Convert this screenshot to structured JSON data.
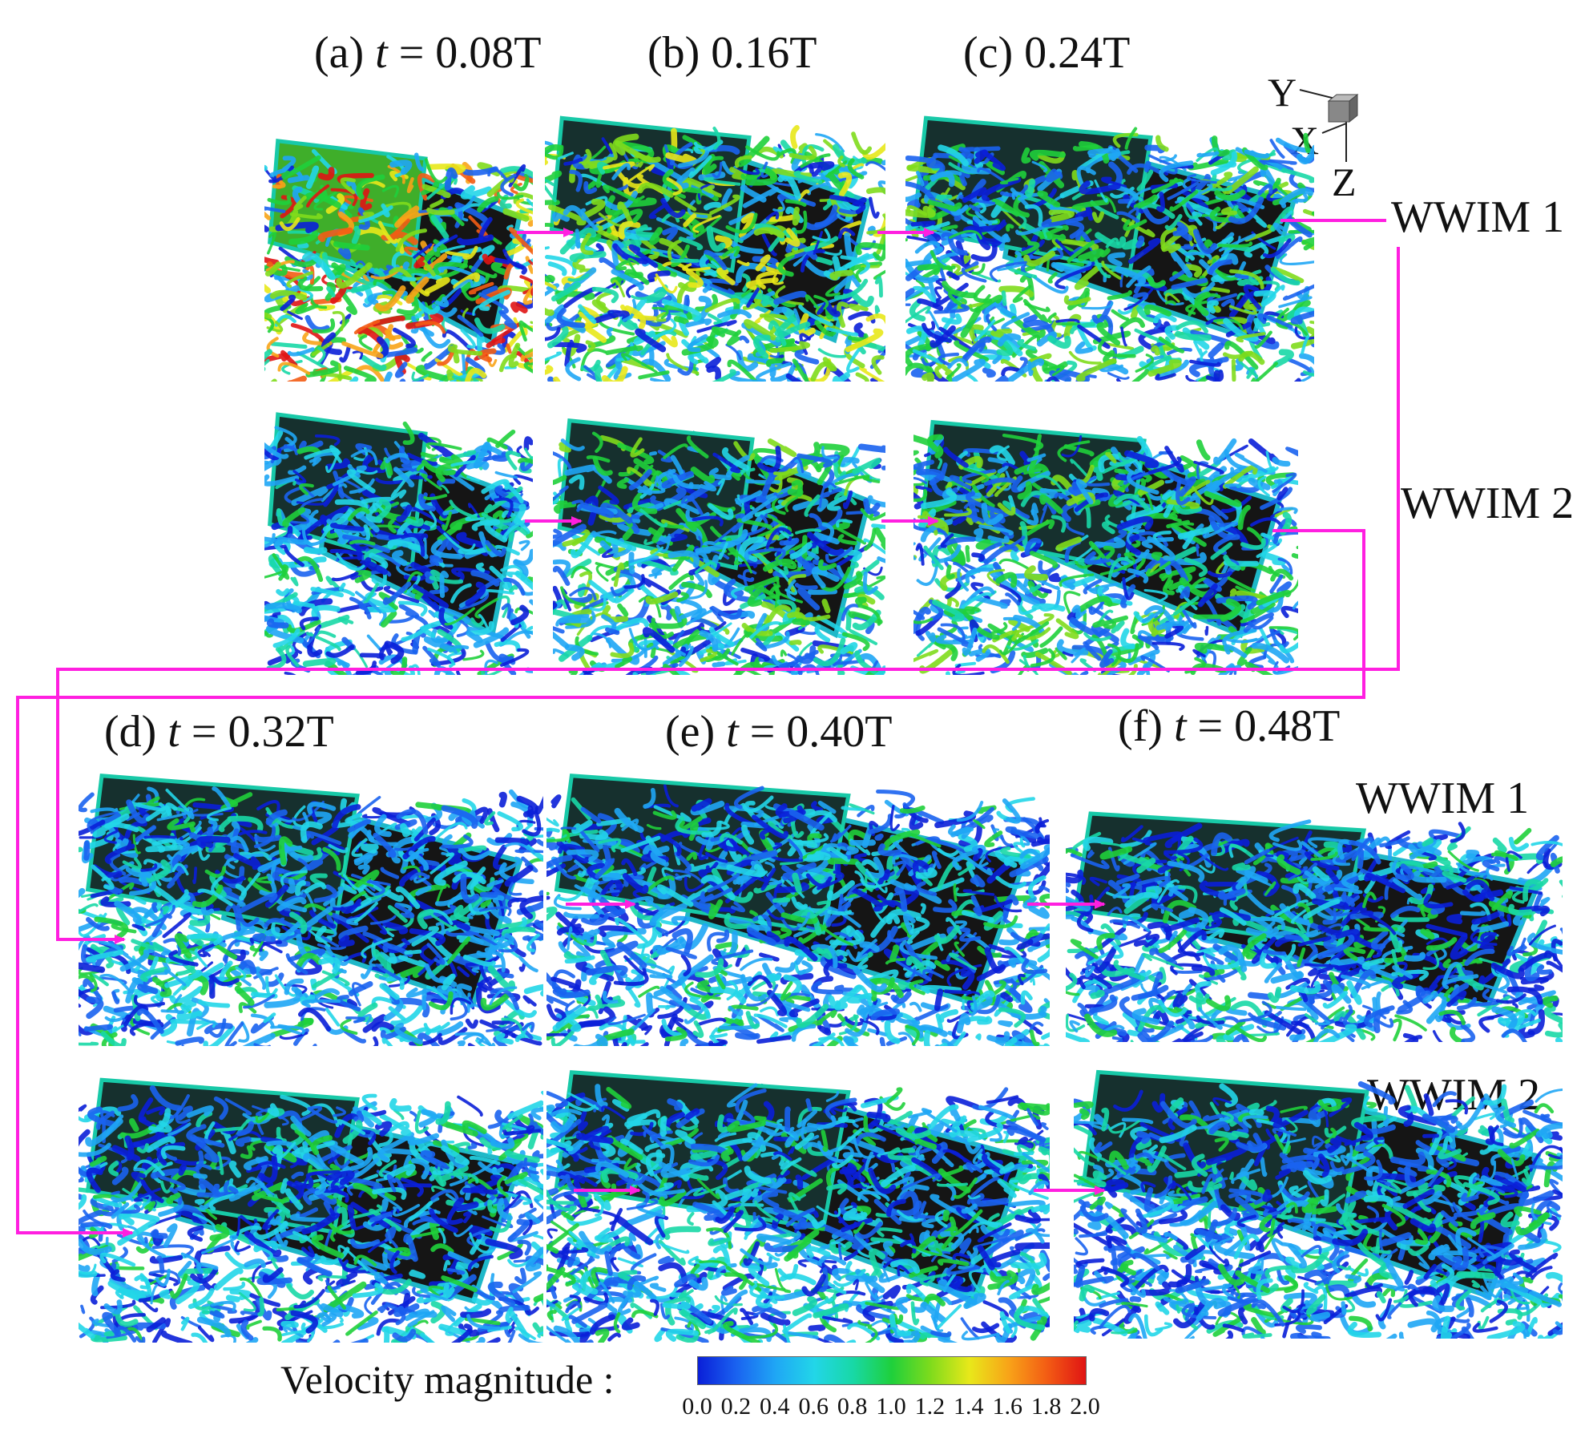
{
  "panels_top": {
    "a": {
      "prefix": "(a) ",
      "var": "t",
      "rest": " = 0.08T"
    },
    "b": {
      "text": "(b) 0.16T"
    },
    "c": {
      "text": "(c) 0.24T"
    }
  },
  "panels_bottom": {
    "d": {
      "prefix": "(d) ",
      "var": "t",
      "rest": " = 0.32T"
    },
    "e": {
      "prefix": "(e) ",
      "var": "t",
      "rest": " = 0.40T"
    },
    "f": {
      "prefix": "(f) ",
      "var": "t",
      "rest": " = 0.48T"
    }
  },
  "series_labels": {
    "top_wwim1": "WWIM 1",
    "top_wwim2": "WWIM 2",
    "bottom_wwim1": "WWIM 1",
    "bottom_wwim2": "WWIM 2"
  },
  "axes": {
    "y": "Y",
    "x": "X",
    "z": "Z"
  },
  "colorbar": {
    "label": "Velocity magnitude :",
    "ticks": [
      "0.0",
      "0.2",
      "0.4",
      "0.6",
      "0.8",
      "1.0",
      "1.2",
      "1.4",
      "1.6",
      "1.8",
      "2.0"
    ],
    "colors": [
      "#0a1fd8",
      "#1a63f0",
      "#1fa6f5",
      "#22d6e8",
      "#18d8a6",
      "#1fd03b",
      "#7fdb1c",
      "#e8e81a",
      "#f8a418",
      "#f35c14",
      "#e01414"
    ]
  },
  "colors": {
    "connector": "#ff1fe0",
    "body": "#141414"
  }
}
